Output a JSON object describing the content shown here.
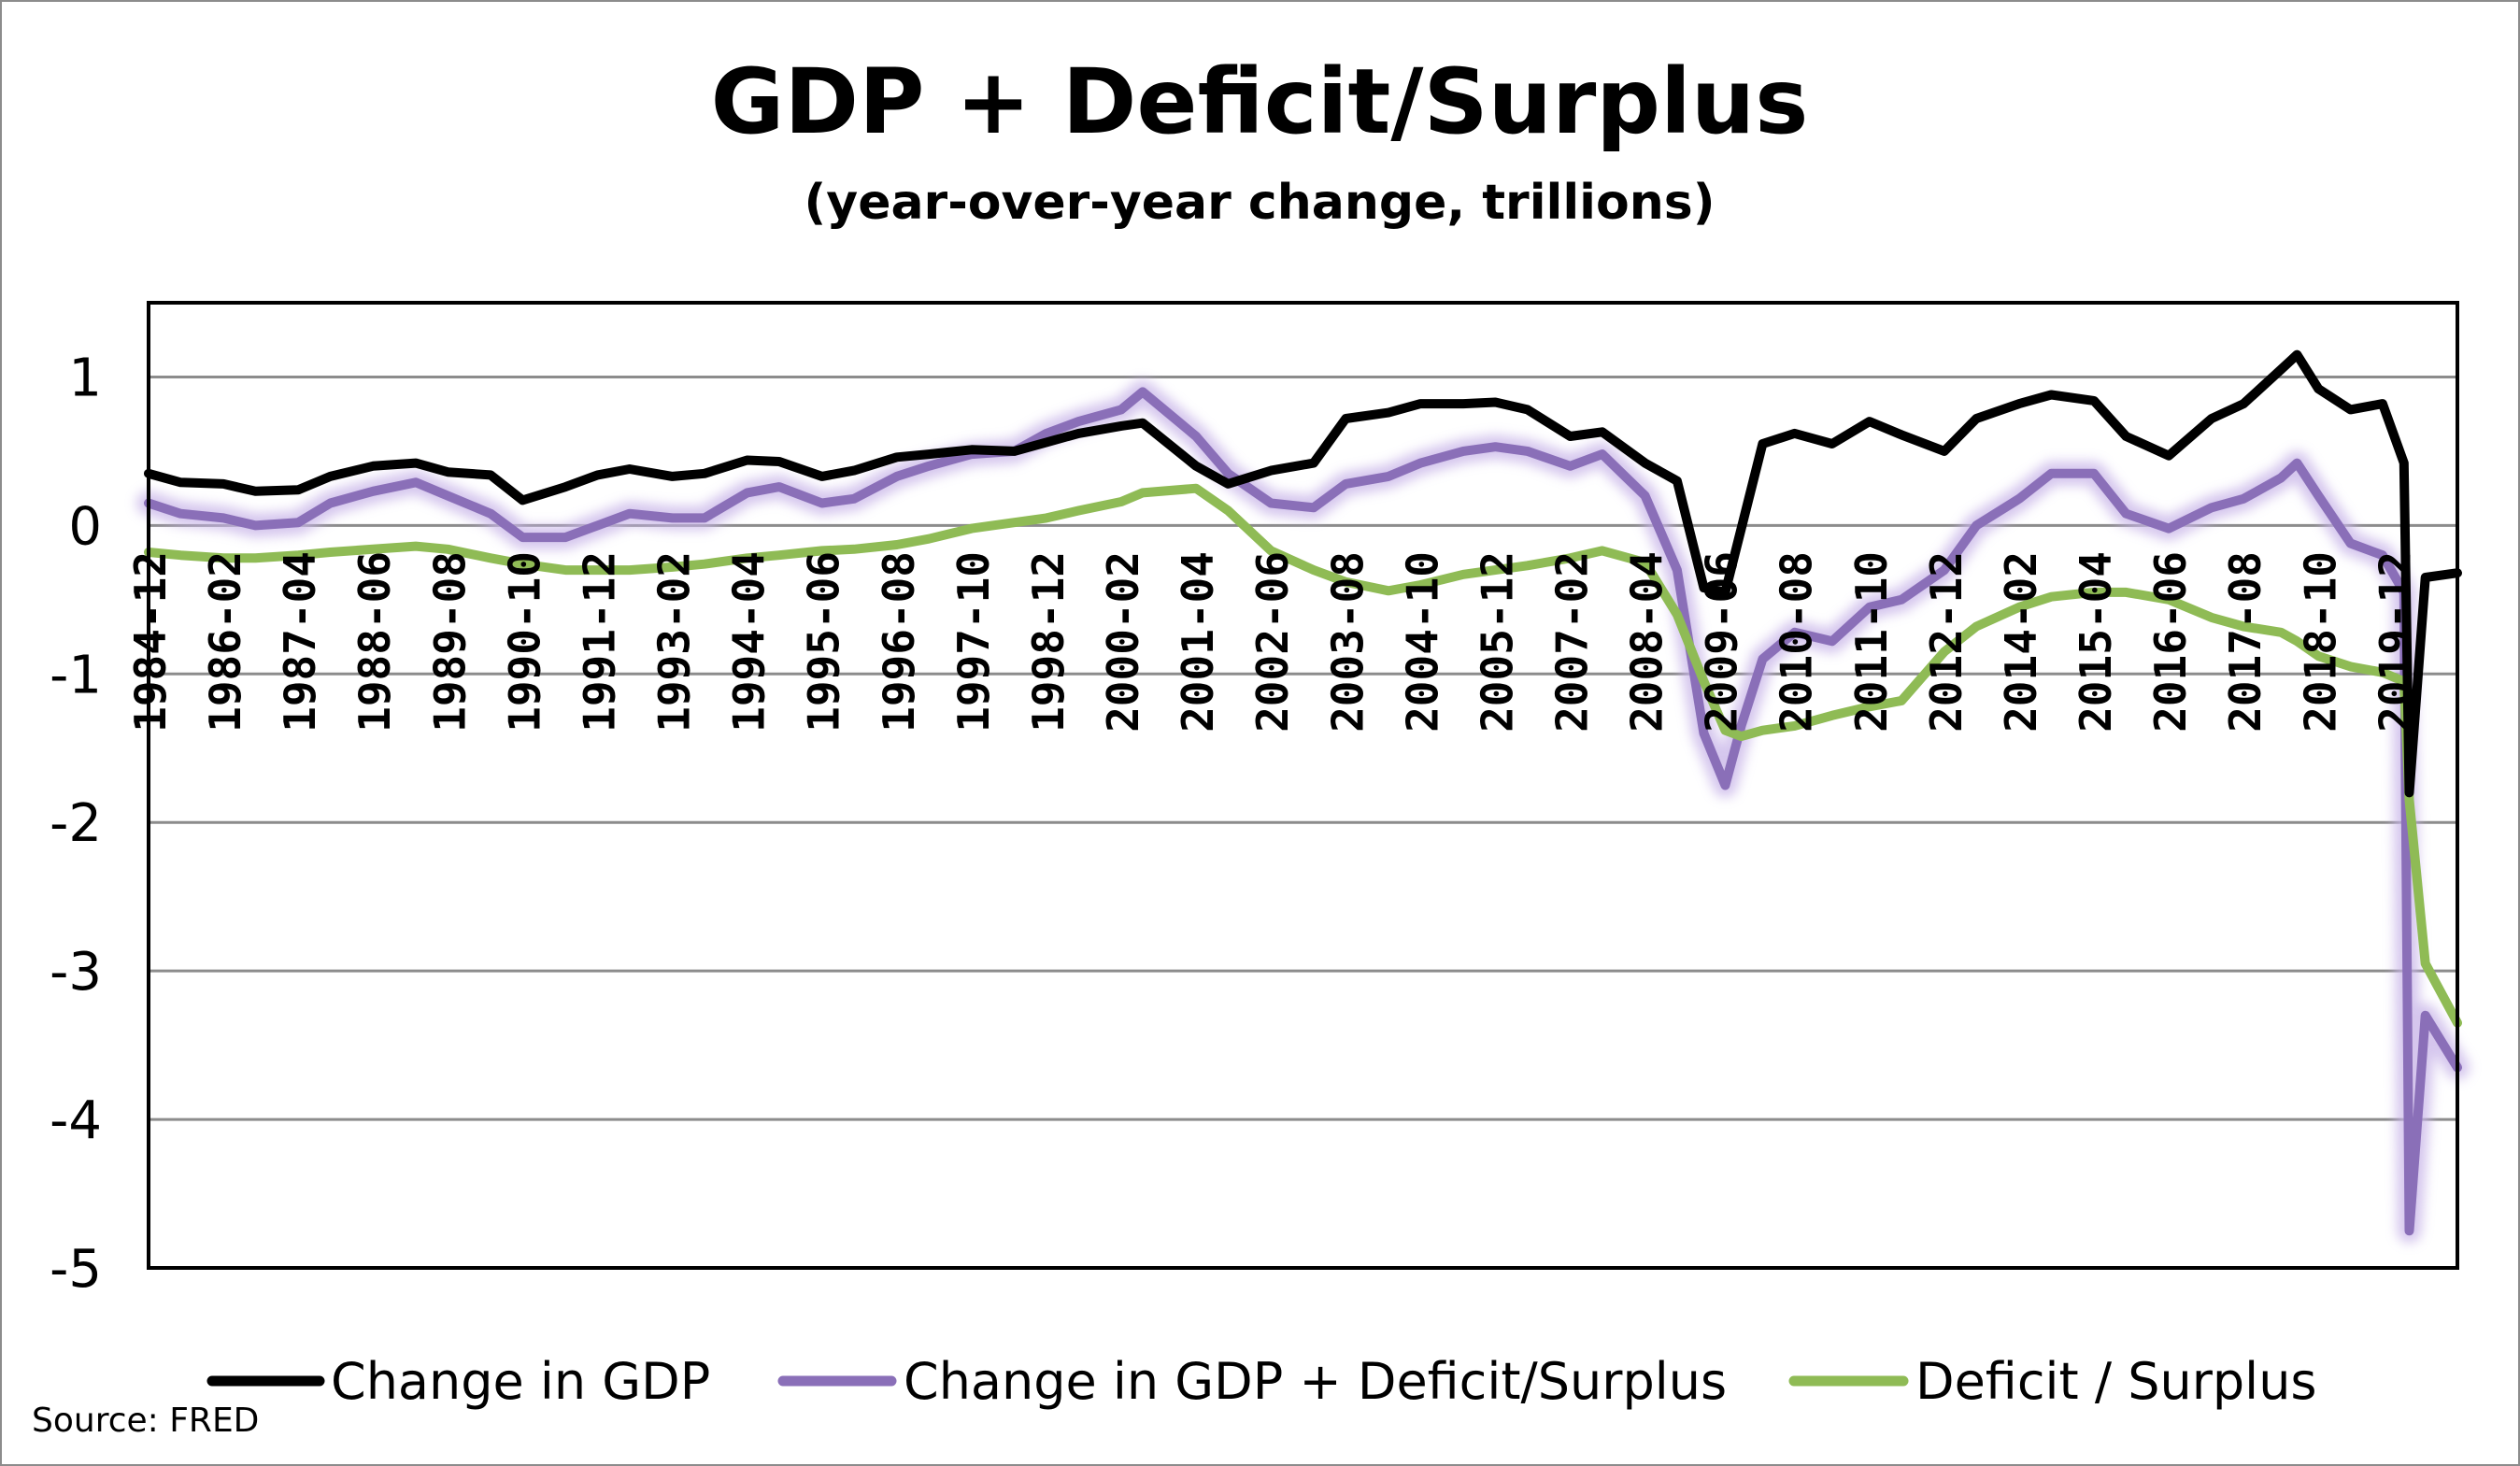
{
  "chart_data": {
    "type": "line",
    "title": "GDP + Deficit/Surplus",
    "subtitle": "(year-over-year change, trillions)",
    "source": "Source: FRED",
    "xlabel": "",
    "ylabel": "",
    "ylim": [
      -5,
      1.5
    ],
    "yticks": [
      1,
      0,
      -1,
      -2,
      -3,
      -4,
      -5
    ],
    "grid": true,
    "legend_position": "bottom",
    "x_start": "1984-12",
    "x_end": "2020-12",
    "x_ticks": [
      "1984-12",
      "1986-02",
      "1987-04",
      "1988-06",
      "1989-08",
      "1990-10",
      "1991-12",
      "1993-02",
      "1994-04",
      "1995-06",
      "1996-08",
      "1997-10",
      "1998-12",
      "2000-02",
      "2001-04",
      "2002-06",
      "2003-08",
      "2004-10",
      "2005-12",
      "2007-02",
      "2008-04",
      "2009-06",
      "2010-08",
      "2011-10",
      "2012-12",
      "2014-02",
      "2015-04",
      "2016-06",
      "2017-08",
      "2018-10",
      "2019-12"
    ],
    "series": [
      {
        "name": "Change in GDP",
        "color": "#000000",
        "points": [
          [
            "1984-12",
            0.35
          ],
          [
            "1985-06",
            0.29
          ],
          [
            "1986-02",
            0.28
          ],
          [
            "1986-08",
            0.23
          ],
          [
            "1987-04",
            0.24
          ],
          [
            "1987-10",
            0.33
          ],
          [
            "1988-06",
            0.4
          ],
          [
            "1989-02",
            0.42
          ],
          [
            "1989-08",
            0.36
          ],
          [
            "1990-04",
            0.34
          ],
          [
            "1990-10",
            0.17
          ],
          [
            "1991-06",
            0.26
          ],
          [
            "1991-12",
            0.34
          ],
          [
            "1992-06",
            0.38
          ],
          [
            "1993-02",
            0.33
          ],
          [
            "1993-08",
            0.35
          ],
          [
            "1994-04",
            0.44
          ],
          [
            "1994-10",
            0.43
          ],
          [
            "1995-06",
            0.33
          ],
          [
            "1995-12",
            0.37
          ],
          [
            "1996-08",
            0.46
          ],
          [
            "1997-02",
            0.48
          ],
          [
            "1997-10",
            0.51
          ],
          [
            "1998-06",
            0.5
          ],
          [
            "1998-12",
            0.56
          ],
          [
            "1999-06",
            0.62
          ],
          [
            "2000-02",
            0.67
          ],
          [
            "2000-06",
            0.69
          ],
          [
            "2001-04",
            0.4
          ],
          [
            "2001-10",
            0.28
          ],
          [
            "2002-06",
            0.37
          ],
          [
            "2003-02",
            0.42
          ],
          [
            "2003-08",
            0.72
          ],
          [
            "2004-04",
            0.76
          ],
          [
            "2004-10",
            0.82
          ],
          [
            "2005-06",
            0.82
          ],
          [
            "2005-12",
            0.83
          ],
          [
            "2006-06",
            0.78
          ],
          [
            "2007-02",
            0.6
          ],
          [
            "2007-08",
            0.63
          ],
          [
            "2008-04",
            0.42
          ],
          [
            "2008-10",
            0.3
          ],
          [
            "2009-03",
            -0.42
          ],
          [
            "2009-07",
            -0.45
          ],
          [
            "2010-02",
            0.55
          ],
          [
            "2010-08",
            0.62
          ],
          [
            "2011-03",
            0.55
          ],
          [
            "2011-10",
            0.7
          ],
          [
            "2012-04",
            0.61
          ],
          [
            "2012-12",
            0.5
          ],
          [
            "2013-06",
            0.72
          ],
          [
            "2014-02",
            0.82
          ],
          [
            "2014-08",
            0.88
          ],
          [
            "2015-04",
            0.84
          ],
          [
            "2015-10",
            0.6
          ],
          [
            "2016-06",
            0.47
          ],
          [
            "2017-02",
            0.72
          ],
          [
            "2017-08",
            0.82
          ],
          [
            "2018-03",
            1.05
          ],
          [
            "2018-06",
            1.15
          ],
          [
            "2018-10",
            0.92
          ],
          [
            "2019-04",
            0.78
          ],
          [
            "2019-10",
            0.82
          ],
          [
            "2020-02",
            0.42
          ],
          [
            "2020-03",
            -1.8
          ],
          [
            "2020-06",
            -0.35
          ],
          [
            "2020-12",
            -0.32
          ]
        ]
      },
      {
        "name": "Change in GDP + Deficit/Surplus",
        "color": "#8a6fb8",
        "points": [
          [
            "1984-12",
            0.15
          ],
          [
            "1985-06",
            0.08
          ],
          [
            "1986-02",
            0.05
          ],
          [
            "1986-08",
            0.0
          ],
          [
            "1987-04",
            0.02
          ],
          [
            "1987-10",
            0.15
          ],
          [
            "1988-06",
            0.23
          ],
          [
            "1989-02",
            0.29
          ],
          [
            "1989-08",
            0.2
          ],
          [
            "1990-04",
            0.08
          ],
          [
            "1990-10",
            -0.08
          ],
          [
            "1991-06",
            -0.08
          ],
          [
            "1991-12",
            0.0
          ],
          [
            "1992-06",
            0.08
          ],
          [
            "1993-02",
            0.05
          ],
          [
            "1993-08",
            0.05
          ],
          [
            "1994-04",
            0.22
          ],
          [
            "1994-10",
            0.26
          ],
          [
            "1995-06",
            0.15
          ],
          [
            "1995-12",
            0.18
          ],
          [
            "1996-08",
            0.33
          ],
          [
            "1997-02",
            0.4
          ],
          [
            "1997-10",
            0.48
          ],
          [
            "1998-06",
            0.5
          ],
          [
            "1998-12",
            0.62
          ],
          [
            "1999-06",
            0.7
          ],
          [
            "2000-02",
            0.78
          ],
          [
            "2000-06",
            0.9
          ],
          [
            "2001-04",
            0.6
          ],
          [
            "2001-10",
            0.35
          ],
          [
            "2002-06",
            0.15
          ],
          [
            "2003-02",
            0.12
          ],
          [
            "2003-08",
            0.28
          ],
          [
            "2004-04",
            0.33
          ],
          [
            "2004-10",
            0.42
          ],
          [
            "2005-06",
            0.5
          ],
          [
            "2005-12",
            0.53
          ],
          [
            "2006-06",
            0.5
          ],
          [
            "2007-02",
            0.4
          ],
          [
            "2007-08",
            0.48
          ],
          [
            "2008-04",
            0.2
          ],
          [
            "2008-10",
            -0.3
          ],
          [
            "2009-03",
            -1.4
          ],
          [
            "2009-07",
            -1.75
          ],
          [
            "2009-10",
            -1.35
          ],
          [
            "2010-02",
            -0.9
          ],
          [
            "2010-08",
            -0.72
          ],
          [
            "2011-03",
            -0.78
          ],
          [
            "2011-10",
            -0.55
          ],
          [
            "2012-04",
            -0.5
          ],
          [
            "2012-12",
            -0.3
          ],
          [
            "2013-06",
            0.0
          ],
          [
            "2014-02",
            0.18
          ],
          [
            "2014-08",
            0.35
          ],
          [
            "2015-04",
            0.35
          ],
          [
            "2015-10",
            0.08
          ],
          [
            "2016-06",
            -0.02
          ],
          [
            "2017-02",
            0.12
          ],
          [
            "2017-08",
            0.18
          ],
          [
            "2018-03",
            0.32
          ],
          [
            "2018-06",
            0.42
          ],
          [
            "2018-10",
            0.2
          ],
          [
            "2019-04",
            -0.12
          ],
          [
            "2019-10",
            -0.2
          ],
          [
            "2020-02",
            -0.45
          ],
          [
            "2020-03",
            -4.75
          ],
          [
            "2020-06",
            -3.3
          ],
          [
            "2020-12",
            -3.65
          ]
        ]
      },
      {
        "name": "Deficit / Surplus",
        "color": "#8fbb55",
        "points": [
          [
            "1984-12",
            -0.18
          ],
          [
            "1985-06",
            -0.2
          ],
          [
            "1986-02",
            -0.22
          ],
          [
            "1986-08",
            -0.22
          ],
          [
            "1987-04",
            -0.2
          ],
          [
            "1987-10",
            -0.18
          ],
          [
            "1988-06",
            -0.16
          ],
          [
            "1989-02",
            -0.14
          ],
          [
            "1989-08",
            -0.16
          ],
          [
            "1990-04",
            -0.22
          ],
          [
            "1990-10",
            -0.26
          ],
          [
            "1991-06",
            -0.3
          ],
          [
            "1991-12",
            -0.3
          ],
          [
            "1992-06",
            -0.3
          ],
          [
            "1993-02",
            -0.28
          ],
          [
            "1993-08",
            -0.26
          ],
          [
            "1994-04",
            -0.22
          ],
          [
            "1994-10",
            -0.2
          ],
          [
            "1995-06",
            -0.17
          ],
          [
            "1995-12",
            -0.16
          ],
          [
            "1996-08",
            -0.13
          ],
          [
            "1997-02",
            -0.09
          ],
          [
            "1997-10",
            -0.02
          ],
          [
            "1998-06",
            0.02
          ],
          [
            "1998-12",
            0.05
          ],
          [
            "1999-06",
            0.1
          ],
          [
            "2000-02",
            0.16
          ],
          [
            "2000-06",
            0.22
          ],
          [
            "2001-04",
            0.25
          ],
          [
            "2001-10",
            0.1
          ],
          [
            "2002-06",
            -0.17
          ],
          [
            "2003-02",
            -0.3
          ],
          [
            "2003-08",
            -0.38
          ],
          [
            "2004-04",
            -0.44
          ],
          [
            "2004-10",
            -0.4
          ],
          [
            "2005-06",
            -0.33
          ],
          [
            "2005-12",
            -0.3
          ],
          [
            "2006-06",
            -0.27
          ],
          [
            "2007-02",
            -0.22
          ],
          [
            "2007-08",
            -0.17
          ],
          [
            "2008-04",
            -0.25
          ],
          [
            "2008-10",
            -0.6
          ],
          [
            "2009-03",
            -1.05
          ],
          [
            "2009-07",
            -1.38
          ],
          [
            "2009-10",
            -1.42
          ],
          [
            "2010-02",
            -1.38
          ],
          [
            "2010-08",
            -1.35
          ],
          [
            "2011-03",
            -1.28
          ],
          [
            "2011-10",
            -1.22
          ],
          [
            "2012-04",
            -1.18
          ],
          [
            "2012-12",
            -0.85
          ],
          [
            "2013-06",
            -0.68
          ],
          [
            "2014-02",
            -0.55
          ],
          [
            "2014-08",
            -0.48
          ],
          [
            "2015-04",
            -0.45
          ],
          [
            "2015-10",
            -0.45
          ],
          [
            "2016-06",
            -0.5
          ],
          [
            "2017-02",
            -0.62
          ],
          [
            "2017-08",
            -0.68
          ],
          [
            "2018-03",
            -0.72
          ],
          [
            "2018-06",
            -0.78
          ],
          [
            "2018-10",
            -0.88
          ],
          [
            "2019-04",
            -0.95
          ],
          [
            "2019-10",
            -0.99
          ],
          [
            "2020-02",
            -1.05
          ],
          [
            "2020-03",
            -1.85
          ],
          [
            "2020-06",
            -2.95
          ],
          [
            "2020-12",
            -3.35
          ]
        ]
      }
    ]
  }
}
